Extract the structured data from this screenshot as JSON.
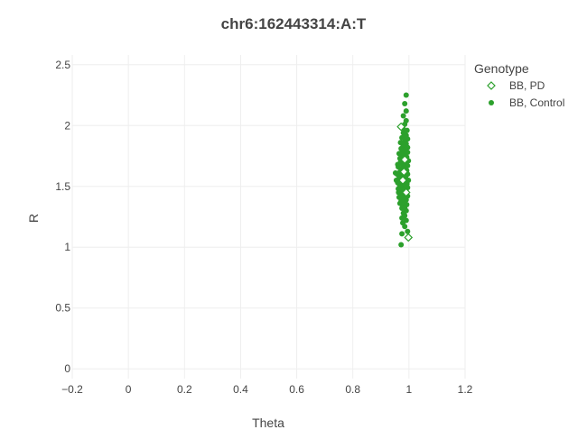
{
  "chart_data": {
    "type": "scatter",
    "title": "chr6:162443314:A:T",
    "xlabel": "Theta",
    "ylabel": "R",
    "xlim": [
      -0.2,
      1.2
    ],
    "ylim": [
      -0.08,
      2.58
    ],
    "xticks": [
      -0.2,
      0,
      0.2,
      0.4,
      0.6,
      0.8,
      1,
      1.2
    ],
    "xtick_labels": [
      "−0.2",
      "0",
      "0.2",
      "0.4",
      "0.6",
      "0.8",
      "1",
      "1.2"
    ],
    "yticks": [
      0,
      0.5,
      1,
      1.5,
      2,
      2.5
    ],
    "ytick_labels": [
      "0",
      "0.5",
      "1",
      "1.5",
      "2",
      "2.5"
    ],
    "grid": true,
    "legend": {
      "title": "Genotype",
      "placement": "top-right"
    },
    "series": [
      {
        "name": "BB, PD",
        "marker": "diamond-open",
        "color": "#2ca02c",
        "points": [
          [
            0.972,
            1.99
          ],
          [
            0.998,
            1.08
          ],
          [
            0.985,
            1.72
          ],
          [
            0.978,
            1.55
          ],
          [
            0.99,
            1.45
          ],
          [
            0.982,
            1.62
          ]
        ]
      },
      {
        "name": "BB, Control",
        "marker": "circle",
        "color": "#2ca02c",
        "points": [
          [
            0.99,
            2.25
          ],
          [
            0.985,
            2.18
          ],
          [
            0.99,
            2.12
          ],
          [
            0.98,
            2.08
          ],
          [
            0.99,
            2.04
          ],
          [
            0.985,
            2.01
          ],
          [
            0.978,
            1.98
          ],
          [
            0.993,
            1.96
          ],
          [
            0.98,
            1.94
          ],
          [
            0.99,
            1.92
          ],
          [
            0.975,
            1.9
          ],
          [
            0.995,
            1.89
          ],
          [
            0.985,
            1.87
          ],
          [
            0.97,
            1.86
          ],
          [
            0.99,
            1.85
          ],
          [
            0.98,
            1.83
          ],
          [
            0.995,
            1.82
          ],
          [
            0.972,
            1.81
          ],
          [
            0.988,
            1.8
          ],
          [
            0.978,
            1.79
          ],
          [
            0.995,
            1.78
          ],
          [
            0.965,
            1.77
          ],
          [
            0.985,
            1.76
          ],
          [
            0.975,
            1.75
          ],
          [
            0.992,
            1.74
          ],
          [
            0.968,
            1.73
          ],
          [
            0.982,
            1.72
          ],
          [
            0.998,
            1.71
          ],
          [
            0.97,
            1.7
          ],
          [
            0.99,
            1.69
          ],
          [
            0.978,
            1.68
          ],
          [
            0.995,
            1.67
          ],
          [
            0.962,
            1.66
          ],
          [
            0.985,
            1.65
          ],
          [
            0.972,
            1.64
          ],
          [
            0.992,
            1.63
          ],
          [
            0.968,
            1.62
          ],
          [
            0.98,
            1.61
          ],
          [
            0.958,
            1.6
          ],
          [
            0.995,
            1.6
          ],
          [
            0.975,
            1.59
          ],
          [
            0.988,
            1.58
          ],
          [
            0.965,
            1.57
          ],
          [
            0.982,
            1.56
          ],
          [
            0.998,
            1.55
          ],
          [
            0.97,
            1.55
          ],
          [
            0.99,
            1.54
          ],
          [
            0.96,
            1.53
          ],
          [
            0.978,
            1.52
          ],
          [
            0.993,
            1.52
          ],
          [
            0.967,
            1.51
          ],
          [
            0.985,
            1.5
          ],
          [
            0.972,
            1.49
          ],
          [
            0.995,
            1.49
          ],
          [
            0.962,
            1.48
          ],
          [
            0.98,
            1.47
          ],
          [
            0.99,
            1.46
          ],
          [
            0.97,
            1.45
          ],
          [
            0.985,
            1.44
          ],
          [
            0.975,
            1.43
          ],
          [
            0.995,
            1.42
          ],
          [
            0.965,
            1.41
          ],
          [
            0.982,
            1.4
          ],
          [
            0.99,
            1.39
          ],
          [
            0.972,
            1.38
          ],
          [
            0.985,
            1.37
          ],
          [
            0.968,
            1.36
          ],
          [
            0.992,
            1.35
          ],
          [
            0.978,
            1.34
          ],
          [
            0.985,
            1.33
          ],
          [
            0.975,
            1.32
          ],
          [
            0.99,
            1.3
          ],
          [
            0.98,
            1.28
          ],
          [
            0.985,
            1.26
          ],
          [
            0.975,
            1.24
          ],
          [
            0.99,
            1.22
          ],
          [
            0.978,
            1.2
          ],
          [
            0.985,
            1.17
          ],
          [
            0.995,
            1.13
          ],
          [
            0.975,
            1.11
          ],
          [
            0.972,
            1.02
          ],
          [
            0.952,
            1.61
          ],
          [
            0.955,
            1.55
          ],
          [
            0.96,
            1.68
          ],
          [
            0.963,
            1.45
          ],
          [
            0.992,
            1.5
          ],
          [
            0.987,
            1.62
          ],
          [
            0.977,
            1.57
          ],
          [
            0.969,
            1.53
          ],
          [
            0.983,
            1.47
          ],
          [
            0.976,
            1.41
          ],
          [
            0.981,
            1.66
          ],
          [
            0.989,
            1.72
          ],
          [
            0.974,
            1.76
          ],
          [
            0.986,
            1.79
          ],
          [
            0.979,
            1.84
          ],
          [
            0.984,
            1.91
          ],
          [
            0.987,
            1.95
          ],
          [
            0.976,
            1.63
          ],
          [
            0.983,
            1.58
          ]
        ]
      }
    ]
  }
}
